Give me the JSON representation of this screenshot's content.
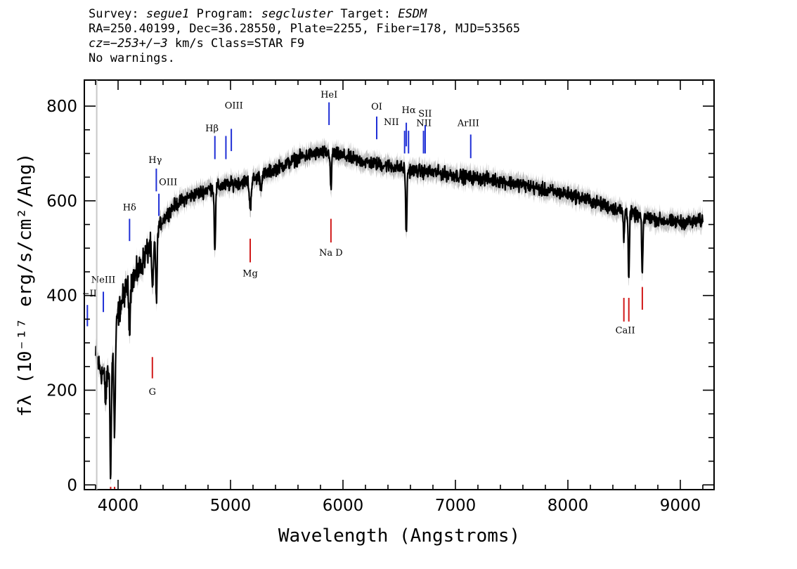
{
  "header": {
    "l1_survey_label": "Survey:",
    "l1_survey": "segue1",
    "l1_program_label": "Program:",
    "l1_program": "segcluster",
    "l1_target_label": "Target:",
    "l1_target": "ESDM",
    "l2": "RA=250.40199, Dec=36.28550, Plate=2255, Fiber=178, MJD=53565",
    "l3_cz_label": "cz=",
    "l3_cz": "−253+/−3",
    "l3_rest": "km/s Class=STAR F9",
    "l4": "No warnings."
  },
  "colors": {
    "flux": "#000000",
    "error_band": "#bdbdbd",
    "emission_marker": "#1f2fd6",
    "absorption_marker": "#d11a1a"
  },
  "chart_data": {
    "type": "line",
    "xlabel": "Wavelength (Angstroms)",
    "ylabel": "fλ (10⁻¹⁷ erg/s/cm²/Ang)",
    "xlim": [
      3700,
      9300
    ],
    "ylim": [
      -10,
      855
    ],
    "x_ticks": [
      4000,
      5000,
      6000,
      7000,
      8000,
      9000
    ],
    "y_ticks": [
      0,
      200,
      400,
      600,
      800
    ],
    "grid": false,
    "continuum": [
      [
        3800,
        270
      ],
      [
        3850,
        240
      ],
      [
        3900,
        230
      ],
      [
        3950,
        270
      ],
      [
        4000,
        360
      ],
      [
        4050,
        400
      ],
      [
        4100,
        430
      ],
      [
        4150,
        440
      ],
      [
        4200,
        460
      ],
      [
        4250,
        490
      ],
      [
        4300,
        510
      ],
      [
        4350,
        540
      ],
      [
        4400,
        560
      ],
      [
        4500,
        590
      ],
      [
        4600,
        605
      ],
      [
        4700,
        615
      ],
      [
        4800,
        625
      ],
      [
        4900,
        630
      ],
      [
        5000,
        635
      ],
      [
        5100,
        640
      ],
      [
        5200,
        645
      ],
      [
        5300,
        655
      ],
      [
        5400,
        668
      ],
      [
        5500,
        678
      ],
      [
        5600,
        690
      ],
      [
        5700,
        697
      ],
      [
        5800,
        702
      ],
      [
        5900,
        700
      ],
      [
        6000,
        695
      ],
      [
        6100,
        688
      ],
      [
        6200,
        682
      ],
      [
        6300,
        678
      ],
      [
        6400,
        674
      ],
      [
        6500,
        670
      ],
      [
        6600,
        665
      ],
      [
        6700,
        662
      ],
      [
        6800,
        660
      ],
      [
        6900,
        657
      ],
      [
        7000,
        654
      ],
      [
        7100,
        650
      ],
      [
        7200,
        648
      ],
      [
        7300,
        645
      ],
      [
        7400,
        642
      ],
      [
        7500,
        638
      ],
      [
        7600,
        634
      ],
      [
        7700,
        628
      ],
      [
        7800,
        622
      ],
      [
        7900,
        618
      ],
      [
        8000,
        614
      ],
      [
        8100,
        608
      ],
      [
        8200,
        600
      ],
      [
        8300,
        592
      ],
      [
        8400,
        585
      ],
      [
        8500,
        578
      ],
      [
        8600,
        570
      ],
      [
        8700,
        565
      ],
      [
        8800,
        560
      ],
      [
        8900,
        556
      ],
      [
        9000,
        555
      ],
      [
        9100,
        555
      ],
      [
        9200,
        558
      ]
    ],
    "absorption_features": [
      {
        "center": 3934,
        "depth": 225,
        "width": 6
      },
      {
        "center": 3969,
        "depth": 200,
        "width": 6
      },
      {
        "center": 3889,
        "depth": 60,
        "width": 6
      },
      {
        "center": 4102,
        "depth": 90,
        "width": 7
      },
      {
        "center": 4307,
        "depth": 100,
        "width": 8
      },
      {
        "center": 4341,
        "depth": 150,
        "width": 6
      },
      {
        "center": 4861,
        "depth": 125,
        "width": 6
      },
      {
        "center": 5175,
        "depth": 60,
        "width": 8
      },
      {
        "center": 5270,
        "depth": 30,
        "width": 5
      },
      {
        "center": 5893,
        "depth": 85,
        "width": 5
      },
      {
        "center": 6563,
        "depth": 130,
        "width": 6
      },
      {
        "center": 8498,
        "depth": 60,
        "width": 5
      },
      {
        "center": 8542,
        "depth": 140,
        "width": 5
      },
      {
        "center": 8662,
        "depth": 130,
        "width": 5
      }
    ],
    "noise_amplitude": 14,
    "error_band_halfwidth": 18,
    "emission_lines": [
      {
        "label": "−II",
        "x": 3727,
        "y0": 335,
        "y1": 380,
        "label_x": 3745,
        "label_y": 398
      },
      {
        "label": "NeIII",
        "x": 3869,
        "y0": 365,
        "y1": 408,
        "label_x": 3869,
        "label_y": 427
      },
      {
        "label": "Hδ",
        "x": 4102,
        "y0": 515,
        "y1": 562,
        "label_x": 4102,
        "label_y": 580
      },
      {
        "label": "Hγ",
        "x": 4340,
        "y0": 620,
        "y1": 668,
        "label_x": 4330,
        "label_y": 680
      },
      {
        "label": "OIII",
        "x": 4363,
        "y0": 568,
        "y1": 615,
        "label_x": 4445,
        "label_y": 633
      },
      {
        "label": "Hβ",
        "x": 4861,
        "y0": 688,
        "y1": 737,
        "label_x": 4835,
        "label_y": 747
      },
      {
        "label": "",
        "x": 4959,
        "y0": 688,
        "y1": 737
      },
      {
        "label": "OIII",
        "x": 5007,
        "y0": 705,
        "y1": 752,
        "label_x": 5030,
        "label_y": 795
      },
      {
        "label": "HeI",
        "x": 5876,
        "y0": 760,
        "y1": 808,
        "label_x": 5876,
        "label_y": 818
      },
      {
        "label": "OI",
        "x": 6300,
        "y0": 730,
        "y1": 778,
        "label_x": 6300,
        "label_y": 793
      },
      {
        "label": "NII",
        "x": 6548,
        "y0": 700,
        "y1": 748,
        "label_x": 6430,
        "label_y": 760
      },
      {
        "label": "Hα",
        "x": 6563,
        "y0": 715,
        "y1": 765,
        "label_x": 6585,
        "label_y": 785
      },
      {
        "label": "",
        "x": 6583,
        "y0": 700,
        "y1": 748
      },
      {
        "label": "NII",
        "x": 6716,
        "y0": 700,
        "y1": 748,
        "label_x": 6720,
        "label_y": 758
      },
      {
        "label": "SII",
        "x": 6731,
        "y0": 700,
        "y1": 760,
        "label_x": 6730,
        "label_y": 778
      },
      {
        "label": "ArIII",
        "x": 7136,
        "y0": 690,
        "y1": 740,
        "label_x": 7115,
        "label_y": 758
      }
    ],
    "absorption_lines": [
      {
        "label": "",
        "x": 3934,
        "y0": -10,
        "y1": -4
      },
      {
        "label": "",
        "x": 3969,
        "y0": -10,
        "y1": -4
      },
      {
        "label": "G",
        "x": 4305,
        "y0": 225,
        "y1": 270,
        "label_x": 4305,
        "label_y": 190
      },
      {
        "label": "Mg",
        "x": 5175,
        "y0": 470,
        "y1": 520,
        "label_x": 5175,
        "label_y": 440
      },
      {
        "label": "Na D",
        "x": 5893,
        "y0": 512,
        "y1": 562,
        "label_x": 5893,
        "label_y": 484
      },
      {
        "label": "CaII",
        "x": 8498,
        "y0": 345,
        "y1": 395,
        "label_x": 8510,
        "label_y": 320
      },
      {
        "label": "",
        "x": 8542,
        "y0": 345,
        "y1": 395
      },
      {
        "label": "",
        "x": 8662,
        "y0": 370,
        "y1": 418
      }
    ]
  }
}
